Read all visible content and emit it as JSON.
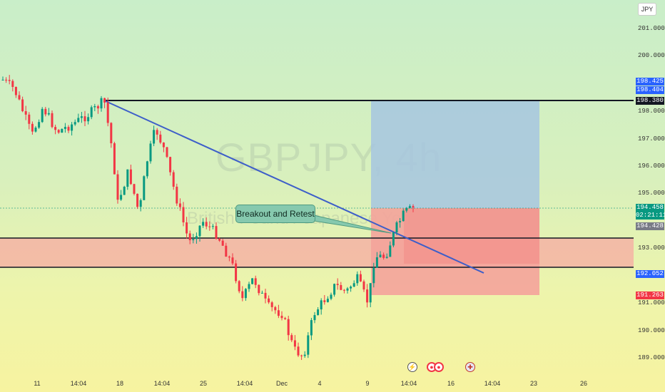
{
  "chart": {
    "symbol_watermark": "GBPJPY, 4h",
    "description_watermark": "British Pound / Japanese Yen",
    "annotation": "Breakout and Retest",
    "currency": "JPY"
  },
  "price_axis": {
    "ticks": [
      "201.000",
      "200.000",
      "198.000",
      "197.000",
      "196.000",
      "195.000",
      "193.000",
      "191.000",
      "190.000",
      "189.000"
    ],
    "badges": {
      "target_a": "198.425",
      "target_b": "198.404",
      "resistance": "198.380",
      "last_price": "194.458",
      "countdown": "02:21:11",
      "entry": "194.428",
      "support": "192.052",
      "stop": "191.263"
    },
    "colors": {
      "target": "#2962ff",
      "resistance": "#131722",
      "last_price": "#089981",
      "entry": "#787b86",
      "support": "#2962ff",
      "stop": "#f23645"
    }
  },
  "time_axis": {
    "ticks": [
      "11",
      "14:04",
      "18",
      "14:04",
      "25",
      "14:04",
      "Dec",
      "4",
      "9",
      "14:04",
      "16",
      "14:04",
      "23",
      "26"
    ]
  },
  "events": [
    "lightning-icon",
    "economic-event-icon",
    "economic-event-icon",
    "uk-flag-icon"
  ],
  "colors": {
    "bull_candle": "#089981",
    "bear_candle": "#f23645",
    "trendline": "#3d5ec9",
    "profit_zone": "#a6c6e0",
    "loss_zone": "#f4a39b",
    "zone_band": "#f4b3a4"
  }
}
